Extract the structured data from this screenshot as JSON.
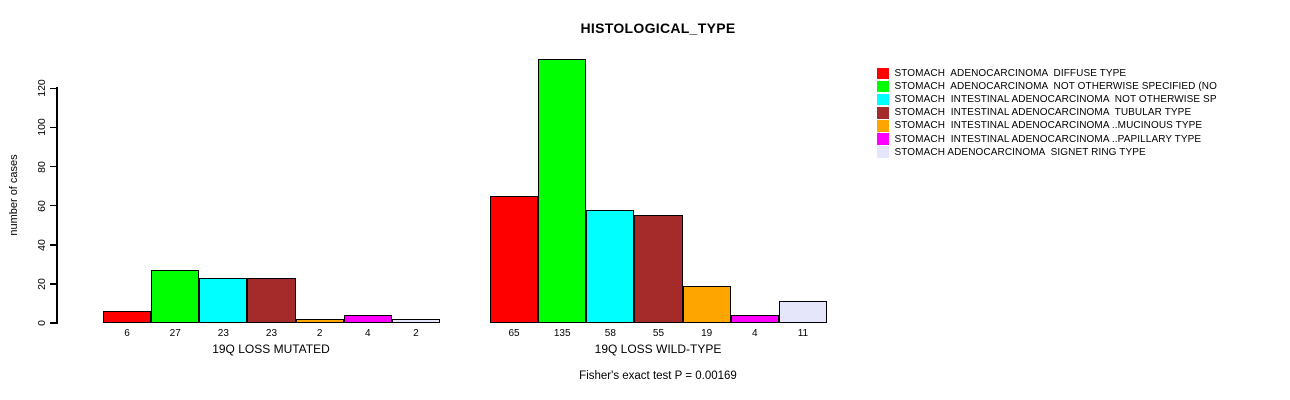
{
  "chart_data": {
    "type": "bar",
    "title": "HISTOLOGICAL_TYPE",
    "ylabel": "number of cases",
    "xlabel": "",
    "ylim": [
      0,
      135
    ],
    "yticks": [
      0,
      20,
      40,
      60,
      80,
      100,
      120
    ],
    "grid": false,
    "legend_position": "right",
    "categories": [
      "STOMACH  ADENOCARCINOMA  DIFFUSE TYPE",
      "STOMACH  ADENOCARCINOMA  NOT OTHERWISE SPECIFIED (NO",
      "STOMACH  INTESTINAL ADENOCARCINOMA  NOT OTHERWISE SP",
      "STOMACH  INTESTINAL ADENOCARCINOMA  TUBULAR TYPE",
      "STOMACH  INTESTINAL ADENOCARCINOMA ..MUCINOUS TYPE",
      "STOMACH  INTESTINAL ADENOCARCINOMA ..PAPILLARY TYPE",
      "STOMACH ADENOCARCINOMA  SIGNET RING TYPE"
    ],
    "colors": [
      "#FF0000",
      "#00FF00",
      "#00FFFF",
      "#A52A2A",
      "#FFA500",
      "#FF00FF",
      "#E6E6FA"
    ],
    "groups": [
      {
        "label": "19Q LOSS MUTATED",
        "values": [
          6,
          27,
          23,
          23,
          2,
          4,
          2
        ]
      },
      {
        "label": "19Q LOSS WILD-TYPE",
        "values": [
          65,
          135,
          58,
          55,
          19,
          4,
          11
        ]
      }
    ],
    "annotation": "Fisher's exact test P = 0.00169"
  }
}
